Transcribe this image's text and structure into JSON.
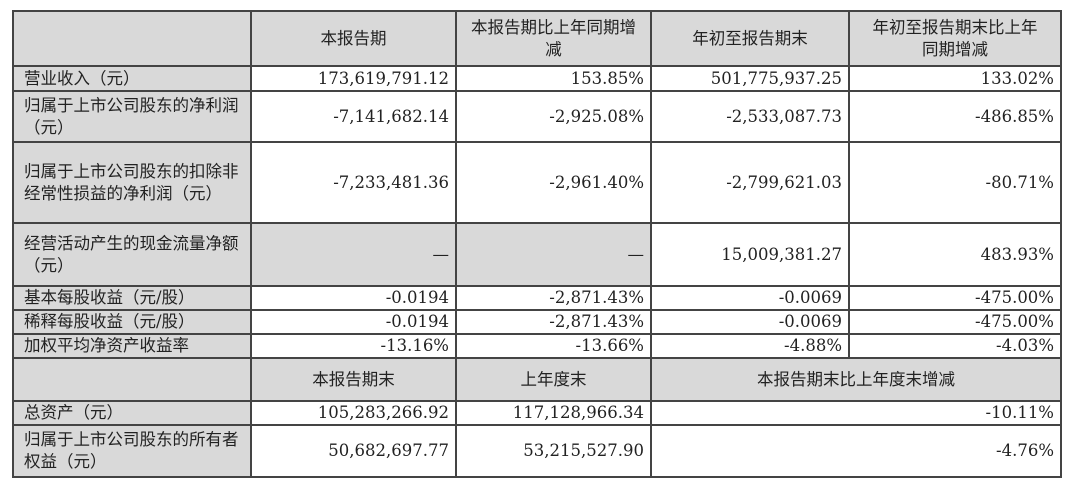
{
  "header": [
    "",
    "本报告期",
    "本报告期比上年同期增减",
    "年初至报告期末",
    "年初至报告期末比上年同期增减"
  ],
  "rows": [
    {
      "label": "营业收入（元）",
      "v": [
        "173,619,791.12",
        "153.85%",
        "501,775,937.25",
        "133.02%"
      ]
    },
    {
      "label": "归属于上市公司股东的净利润（元）",
      "v": [
        "-7,141,682.14",
        "-2,925.08%",
        "-2,533,087.73",
        "-486.85%"
      ]
    },
    {
      "label": "归属于上市公司股东的扣除非经常性损益的净利润（元）",
      "v": [
        "-7,233,481.36",
        "-2,961.40%",
        "-2,799,621.03",
        "-80.71%"
      ]
    },
    {
      "label": "经营活动产生的现金流量净额（元）",
      "v": [
        "—",
        "—",
        "15,009,381.27",
        "483.93%"
      ]
    },
    {
      "label": "基本每股收益（元/股）",
      "v": [
        "-0.0194",
        "-2,871.43%",
        "-0.0069",
        "-475.00%"
      ]
    },
    {
      "label": "稀释每股收益（元/股）",
      "v": [
        "-0.0194",
        "-2,871.43%",
        "-0.0069",
        "-475.00%"
      ]
    },
    {
      "label": "加权平均净资产收益率",
      "v": [
        "-13.16%",
        "-13.66%",
        "-4.88%",
        "-4.03%"
      ]
    }
  ],
  "header2": [
    "",
    "本报告期末",
    "上年度末",
    "本报告期末比上年度末增减"
  ],
  "rows2": [
    {
      "label": "总资产（元）",
      "v": [
        "105,283,266.92",
        "117,128,966.34",
        "-10.11%"
      ]
    },
    {
      "label": "归属于上市公司股东的所有者权益（元）",
      "v": [
        "50,682,697.77",
        "53,215,527.90",
        "-4.76%"
      ]
    }
  ]
}
